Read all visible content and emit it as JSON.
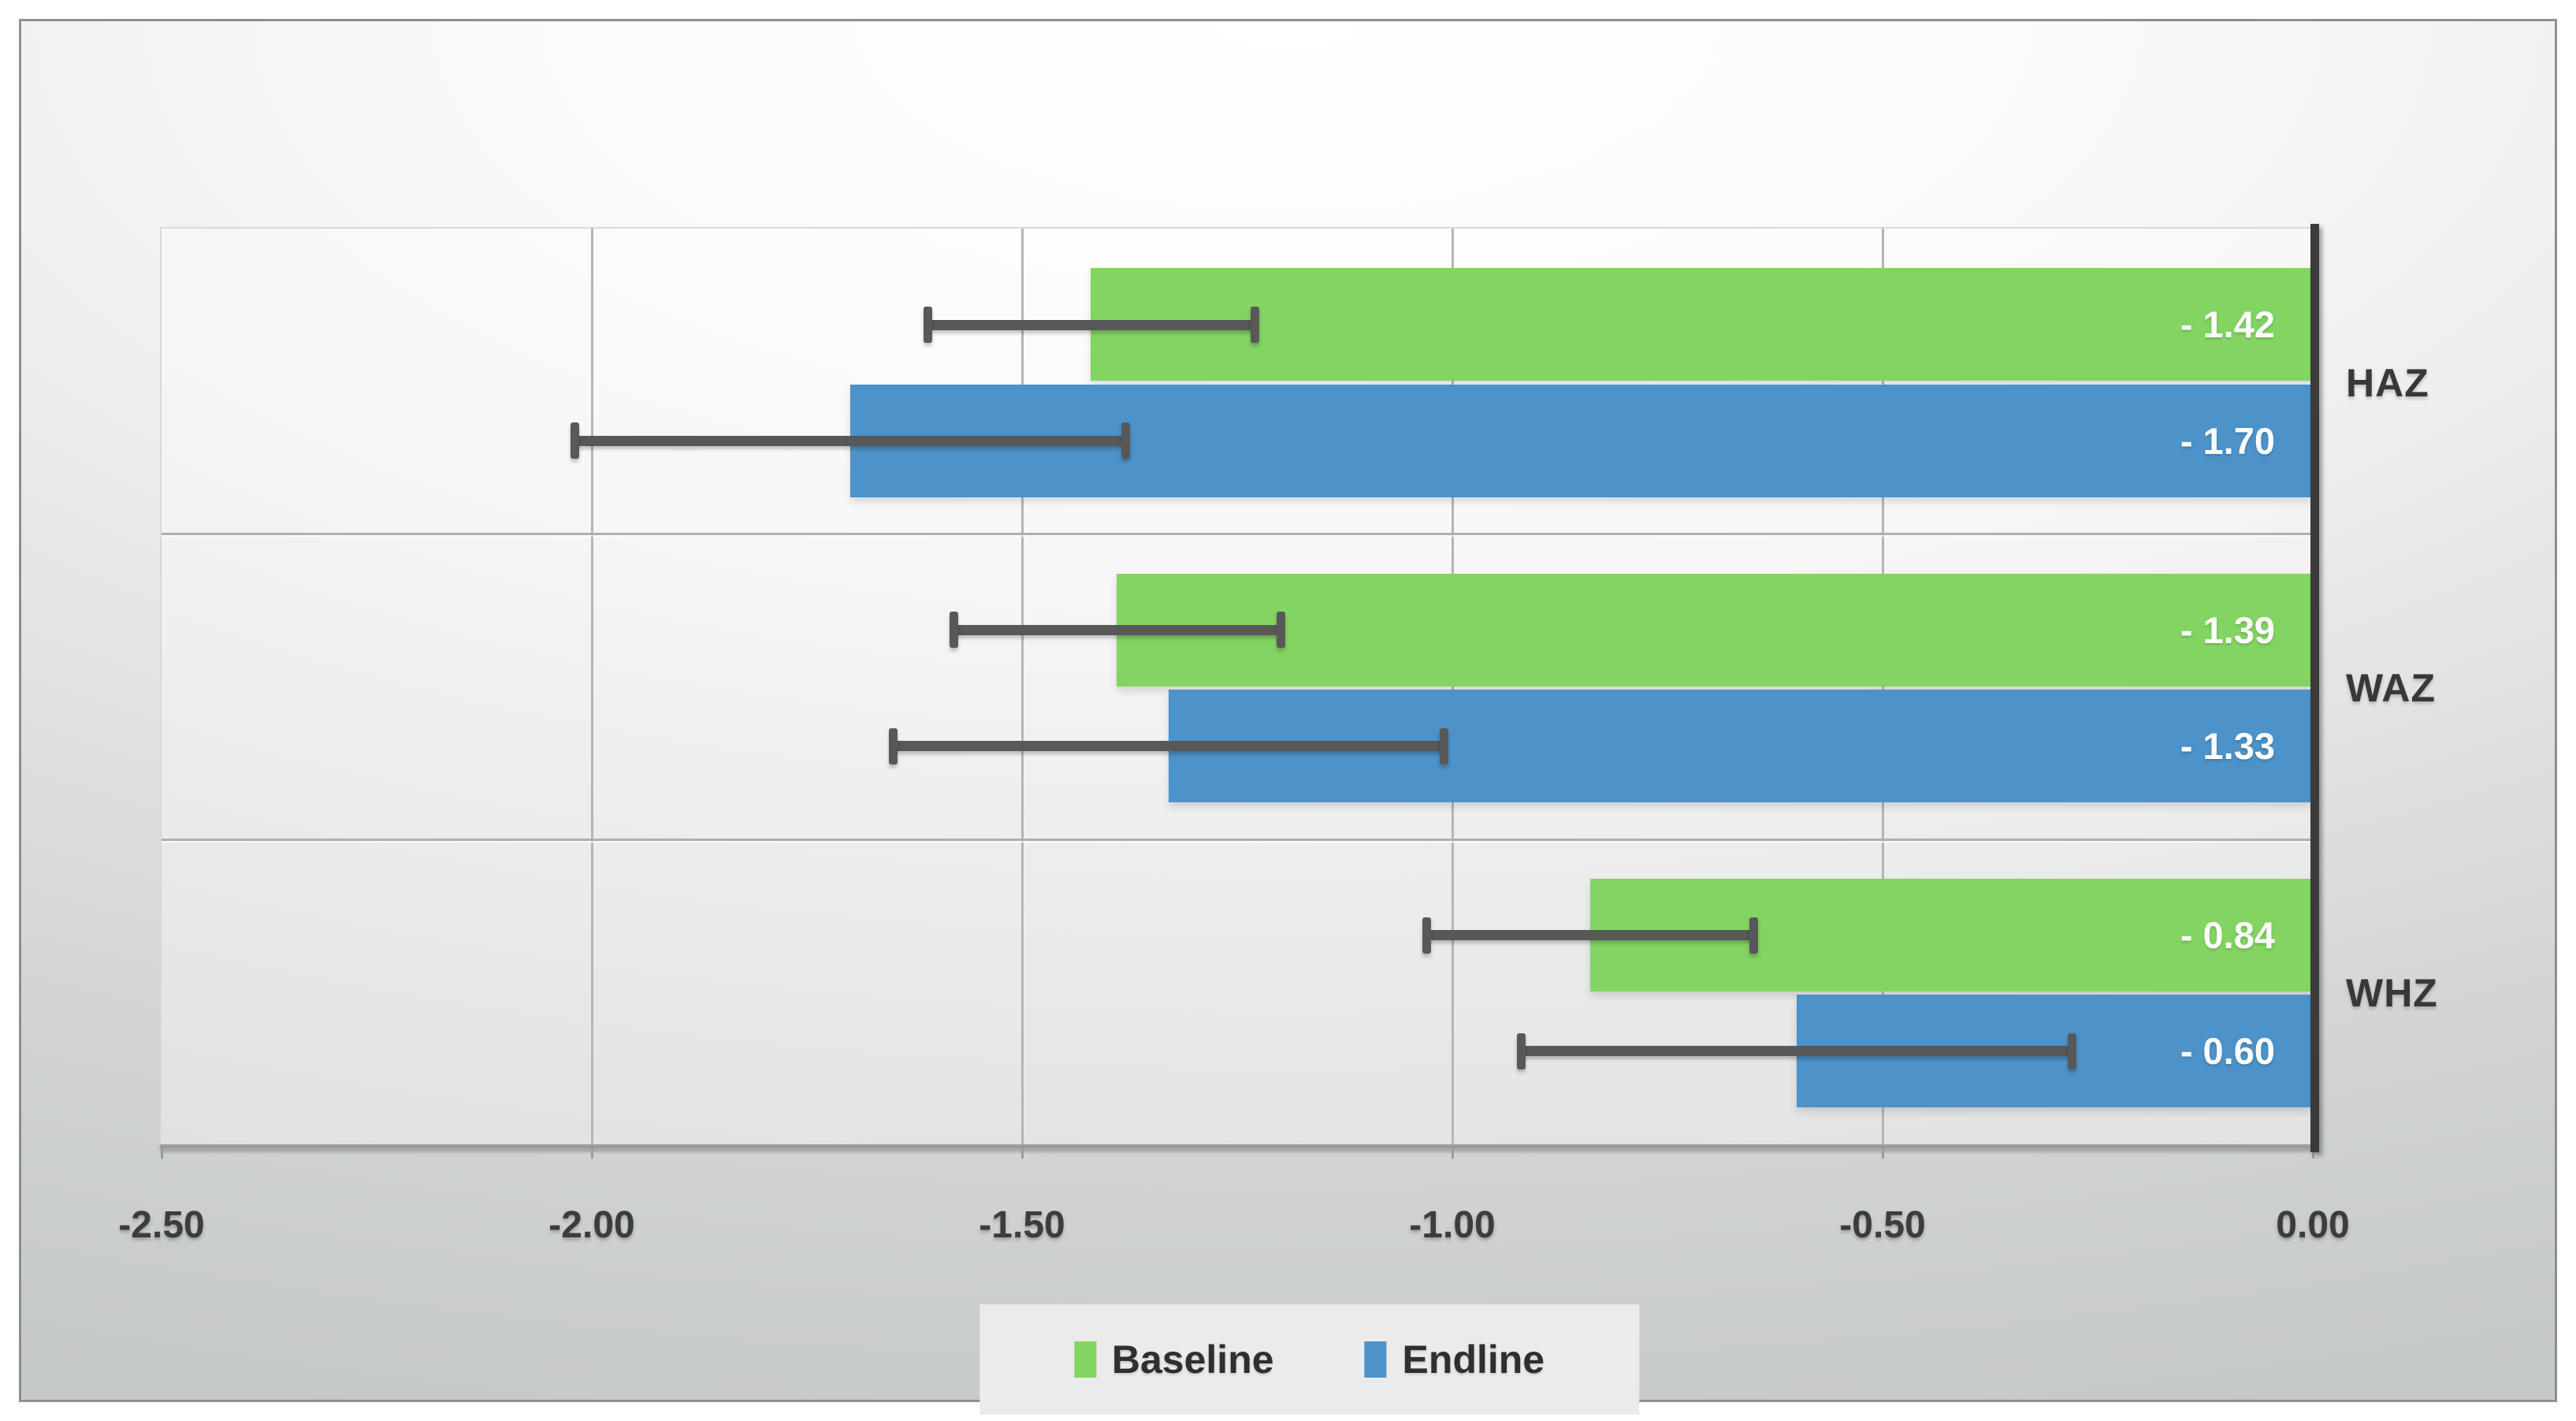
{
  "chart_data": {
    "type": "bar",
    "orientation": "horizontal",
    "categories": [
      "HAZ",
      "WAZ",
      "WHZ"
    ],
    "series": [
      {
        "name": "Baseline",
        "color": "#83D462",
        "values": [
          -1.42,
          -1.39,
          -0.84
        ],
        "data_labels": [
          "- 1.42",
          "- 1.39",
          "- 0.84"
        ],
        "error_margins": [
          0.19,
          0.19,
          0.19
        ]
      },
      {
        "name": "Endline",
        "color": "#4D92C9",
        "values": [
          -1.7,
          -1.33,
          -0.6
        ],
        "data_labels": [
          "- 1.70",
          "- 1.33",
          "- 0.60"
        ],
        "error_margins": [
          0.32,
          0.32,
          0.32
        ]
      }
    ],
    "xlim": [
      -2.5,
      0.0
    ],
    "x_ticks": [
      {
        "value": -2.5,
        "label": "-2.50"
      },
      {
        "value": -2.0,
        "label": "-2.00"
      },
      {
        "value": -1.5,
        "label": "-1.50"
      },
      {
        "value": -1.0,
        "label": "-1.00"
      },
      {
        "value": -0.5,
        "label": "-0.50"
      },
      {
        "value": 0.0,
        "label": "0.00"
      }
    ],
    "grid": true,
    "legend_position": "bottom",
    "legend": [
      "Baseline",
      "Endline"
    ]
  },
  "colors": {
    "baseline": "#83D462",
    "endline": "#4D92C9",
    "error_bar": "#585858",
    "gridline": "#B5B5B5",
    "plot_border": "#D8D8D8",
    "zero_axis": "#3B3B3B",
    "bottom_axis": "#9C9C9C",
    "tick_text": "#3C3C3C",
    "category_text": "#383838",
    "data_label_text": "#FFFFFF",
    "legend_bg": "#EBEBEB",
    "frame_border": "#8E8E8E"
  }
}
